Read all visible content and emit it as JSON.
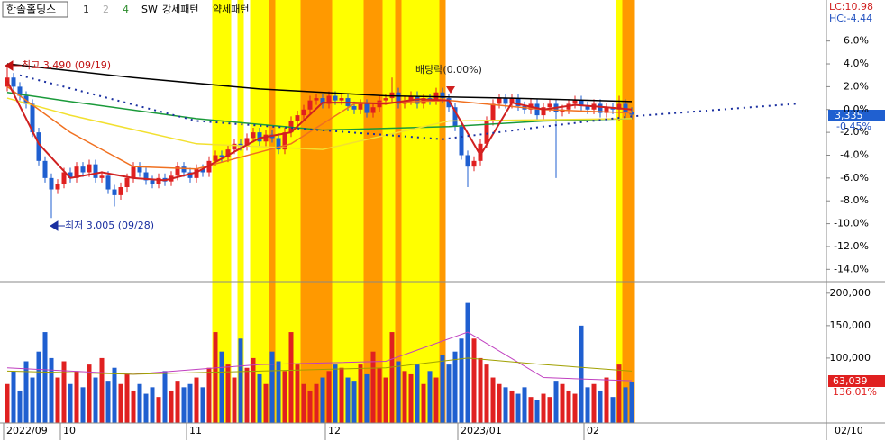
{
  "chart_data": {
    "type": "candlestick",
    "header": {
      "title": "한솔홀딩스",
      "items": [
        "1",
        "2",
        "4"
      ],
      "sw": "SW",
      "strong": "강세패턴",
      "weak": "약세패턴"
    },
    "lc": "LC:10.98",
    "hc": "HC:-4.44",
    "last_price": "3,335",
    "last_change": "-0.45%",
    "last_volume": "63,039",
    "volume_ratio": "136.01%",
    "date_box": "02/10",
    "annotations": {
      "high": "최고 3,490 (09/19)",
      "low": "최저 3,005 (09/28)",
      "ex_dividend": "배당락(0.00%)"
    },
    "up_color": "#e02020",
    "down_color": "#1f5fd0",
    "ylim": [
      -15,
      9.6
    ],
    "yticks": [
      {
        "value": 6,
        "label": "6.0%"
      },
      {
        "value": 4,
        "label": "4.0%"
      },
      {
        "value": 2,
        "label": "2.0%"
      },
      {
        "value": 0,
        "label": "0.0%"
      },
      {
        "value": -2,
        "label": "-2.0%"
      },
      {
        "value": -4,
        "label": "-4.0%"
      },
      {
        "value": -6,
        "label": "-6.0%"
      },
      {
        "value": -8,
        "label": "-8.0%"
      },
      {
        "value": -10,
        "label": "-10.0%"
      },
      {
        "value": -12,
        "label": "-12.0%"
      },
      {
        "value": -14,
        "label": "-14.0%"
      }
    ],
    "volume_ylim": [
      0,
      215000
    ],
    "volume_yticks": [
      {
        "value": 200000,
        "label": "200,000"
      },
      {
        "value": 150000,
        "label": "150,000"
      },
      {
        "value": 100000,
        "label": "100,000"
      }
    ],
    "x_labels": [
      {
        "index": 0,
        "label": "2022/09"
      },
      {
        "index": 9,
        "label": "10"
      },
      {
        "index": 29,
        "label": "11"
      },
      {
        "index": 51,
        "label": "12"
      },
      {
        "index": 72,
        "label": "2023/01"
      },
      {
        "index": 92,
        "label": "02"
      }
    ],
    "bands": [
      {
        "from": 33,
        "to": 35,
        "color": "#ffff00"
      },
      {
        "from": 37,
        "to": 37,
        "color": "#ffff00"
      },
      {
        "from": 39,
        "to": 41,
        "color": "#ffff00"
      },
      {
        "from": 42,
        "to": 42,
        "color": "#ff9900"
      },
      {
        "from": 43,
        "to": 46,
        "color": "#ffff00"
      },
      {
        "from": 47,
        "to": 51,
        "color": "#ff9900"
      },
      {
        "from": 52,
        "to": 56,
        "color": "#ffff00"
      },
      {
        "from": 57,
        "to": 59,
        "color": "#ff9900"
      },
      {
        "from": 60,
        "to": 61,
        "color": "#ffff00"
      },
      {
        "from": 62,
        "to": 62,
        "color": "#ff9900"
      },
      {
        "from": 63,
        "to": 68,
        "color": "#ffff00"
      },
      {
        "from": 69,
        "to": 69,
        "color": "#ff9900"
      },
      {
        "from": 97,
        "to": 97,
        "color": "#ffff00"
      },
      {
        "from": 98,
        "to": 99,
        "color": "#ff9900"
      }
    ],
    "candles": {
      "open": [
        2.0,
        2.8,
        2.0,
        1.2,
        0.5,
        -2.0,
        -4.5,
        -6.0,
        -7.0,
        -6.5,
        -5.5,
        -6.0,
        -5.0,
        -5.5,
        -4.8,
        -6.0,
        -5.8,
        -7.0,
        -7.5,
        -6.8,
        -6.0,
        -5.0,
        -5.5,
        -6.2,
        -6.5,
        -6.0,
        -6.3,
        -5.8,
        -5.0,
        -5.5,
        -6.0,
        -5.2,
        -5.5,
        -4.5,
        -4.0,
        -4.2,
        -3.5,
        -3.0,
        -3.2,
        -2.5,
        -2.0,
        -2.8,
        -2.2,
        -2.5,
        -3.5,
        -2.0,
        -1.0,
        -0.5,
        0.0,
        0.8,
        1.0,
        0.5,
        1.2,
        0.8,
        1.0,
        0.3,
        0.0,
        0.5,
        -0.3,
        0.2,
        0.8,
        1.0,
        1.5,
        0.5,
        0.8,
        1.2,
        0.5,
        1.0,
        0.8,
        1.5,
        1.0,
        0.2,
        -1.5,
        -4.0,
        -5.0,
        -4.5,
        -3.0,
        -1.0,
        0.5,
        1.0,
        0.5,
        1.0,
        0.3,
        0.0,
        0.5,
        -0.5,
        0.2,
        0.5,
        -0.2,
        0.0,
        0.5,
        0.8,
        0.3,
        0.0,
        0.5,
        -0.3,
        0.2,
        0.0,
        0.5,
        -0.2
      ],
      "close": [
        2.8,
        2.0,
        1.2,
        0.5,
        -2.0,
        -4.5,
        -6.0,
        -7.0,
        -6.5,
        -5.5,
        -6.0,
        -5.0,
        -5.5,
        -4.8,
        -6.0,
        -5.8,
        -7.0,
        -7.5,
        -6.8,
        -6.0,
        -5.0,
        -5.5,
        -6.2,
        -6.5,
        -6.0,
        -6.3,
        -5.8,
        -5.0,
        -5.5,
        -6.0,
        -5.2,
        -5.5,
        -4.5,
        -4.0,
        -4.2,
        -3.5,
        -3.0,
        -3.2,
        -2.5,
        -2.0,
        -2.8,
        -2.2,
        -2.5,
        -3.5,
        -2.0,
        -1.0,
        -0.5,
        0.0,
        0.8,
        1.0,
        0.5,
        1.2,
        0.8,
        1.0,
        0.3,
        0.0,
        0.5,
        -0.3,
        0.2,
        0.8,
        1.0,
        1.5,
        0.5,
        0.8,
        1.2,
        0.5,
        1.0,
        0.8,
        1.5,
        1.0,
        0.2,
        -1.5,
        -4.0,
        -5.0,
        -4.5,
        -3.0,
        -1.0,
        0.5,
        1.0,
        0.5,
        1.0,
        0.3,
        0.0,
        0.5,
        -0.5,
        0.2,
        0.5,
        -0.2,
        0.0,
        0.5,
        0.8,
        0.3,
        0.0,
        0.5,
        -0.3,
        0.2,
        0.0,
        0.5,
        -0.2,
        -0.45
      ],
      "high": [
        3.9,
        3.2,
        2.4,
        1.6,
        0.9,
        -1.6,
        -4.1,
        -5.6,
        -6.1,
        -5.1,
        -5.1,
        -4.6,
        -4.6,
        -4.4,
        -4.4,
        -5.4,
        -5.4,
        -6.6,
        -6.4,
        -5.6,
        -4.6,
        -4.6,
        -5.1,
        -5.8,
        -5.6,
        -5.6,
        -5.4,
        -4.6,
        -4.6,
        -5.1,
        -4.8,
        -4.8,
        -4.1,
        -3.6,
        -3.6,
        -3.1,
        -2.6,
        -2.6,
        -2.1,
        -1.6,
        -1.6,
        -1.8,
        -1.8,
        -2.1,
        -1.6,
        -0.6,
        -0.1,
        0.4,
        1.2,
        1.4,
        1.4,
        1.6,
        1.6,
        1.4,
        1.4,
        0.7,
        0.9,
        0.9,
        0.6,
        1.2,
        1.4,
        2.8,
        1.9,
        1.2,
        1.6,
        1.6,
        1.4,
        1.4,
        1.9,
        1.9,
        1.4,
        0.6,
        -1.1,
        -3.6,
        -4.1,
        -2.6,
        -0.6,
        0.9,
        1.4,
        1.4,
        1.4,
        1.4,
        0.7,
        0.9,
        0.9,
        0.6,
        0.9,
        0.9,
        0.4,
        0.9,
        1.2,
        1.2,
        0.7,
        0.9,
        0.9,
        0.6,
        0.6,
        1.2,
        0.9,
        0.2
      ],
      "low": [
        1.6,
        1.6,
        0.8,
        0.1,
        -2.4,
        -4.9,
        -6.4,
        -9.5,
        -7.4,
        -6.9,
        -6.4,
        -6.4,
        -5.9,
        -5.9,
        -6.4,
        -6.4,
        -7.4,
        -8.5,
        -7.9,
        -7.2,
        -6.4,
        -5.9,
        -6.6,
        -6.9,
        -6.9,
        -6.7,
        -6.7,
        -6.2,
        -5.9,
        -6.4,
        -6.4,
        -5.9,
        -5.9,
        -4.9,
        -4.6,
        -4.6,
        -3.9,
        -3.6,
        -3.6,
        -2.9,
        -3.2,
        -3.2,
        -2.9,
        -3.9,
        -3.9,
        -2.4,
        -1.4,
        -0.9,
        -0.4,
        0.4,
        0.1,
        0.1,
        0.4,
        0.4,
        -0.1,
        -0.4,
        -0.4,
        -0.7,
        -0.7,
        -0.2,
        0.4,
        0.6,
        0.1,
        0.1,
        0.4,
        0.1,
        0.1,
        0.4,
        0.4,
        0.6,
        -0.2,
        -1.9,
        -4.4,
        -6.8,
        -5.4,
        -4.9,
        -3.4,
        -1.4,
        0.1,
        0.1,
        0.1,
        -0.1,
        -0.4,
        -0.4,
        -0.9,
        -0.9,
        -0.2,
        -6.0,
        -0.6,
        -0.4,
        0.1,
        -0.1,
        -0.4,
        -0.4,
        -0.7,
        -0.7,
        -0.4,
        -1.0,
        -0.6,
        -0.85
      ]
    },
    "volume": [
      60000,
      80000,
      50000,
      95000,
      70000,
      110000,
      140000,
      100000,
      70000,
      95000,
      60000,
      80000,
      55000,
      90000,
      70000,
      100000,
      65000,
      85000,
      60000,
      75000,
      50000,
      60000,
      45000,
      55000,
      40000,
      80000,
      50000,
      65000,
      55000,
      60000,
      70000,
      55000,
      85000,
      140000,
      110000,
      90000,
      70000,
      130000,
      85000,
      100000,
      75000,
      60000,
      110000,
      95000,
      80000,
      140000,
      90000,
      60000,
      50000,
      60000,
      70000,
      80000,
      90000,
      85000,
      70000,
      65000,
      90000,
      75000,
      110000,
      85000,
      70000,
      140000,
      95000,
      80000,
      75000,
      90000,
      60000,
      80000,
      70000,
      105000,
      90000,
      110000,
      130000,
      185000,
      130000,
      100000,
      90000,
      70000,
      60000,
      55000,
      50000,
      45000,
      55000,
      40000,
      35000,
      45000,
      40000,
      65000,
      60000,
      50000,
      45000,
      150000,
      55000,
      60000,
      50000,
      70000,
      40000,
      90000,
      55000,
      63039
    ],
    "moving_averages": [
      {
        "color": "#000000",
        "width": 1.5,
        "x": [
          0,
          20,
          40,
          60,
          80,
          99
        ],
        "values": [
          4.0,
          2.8,
          1.8,
          1.2,
          1.0,
          0.7
        ]
      },
      {
        "color": "#1a9a3a",
        "width": 1.5,
        "x": [
          0,
          10,
          30,
          50,
          70,
          85,
          99
        ],
        "values": [
          1.5,
          0.7,
          -0.8,
          -1.8,
          -1.5,
          -1.0,
          -0.8
        ]
      },
      {
        "color": "#f2e030",
        "width": 1.5,
        "x": [
          0,
          10,
          30,
          50,
          70,
          99
        ],
        "values": [
          1.0,
          -0.5,
          -3.0,
          -3.5,
          -1.0,
          -0.8
        ]
      },
      {
        "color": "#f07020",
        "width": 1.5,
        "x": [
          0,
          10,
          20,
          30,
          45,
          55,
          70,
          85,
          99
        ],
        "values": [
          2.0,
          -2.0,
          -5.0,
          -5.2,
          -3.0,
          0.5,
          0.8,
          0.0,
          -0.3
        ]
      },
      {
        "color": "#d02020",
        "width": 2,
        "x": [
          0,
          5,
          10,
          15,
          20,
          25,
          30,
          35,
          40,
          45,
          50,
          55,
          60,
          65,
          70,
          75,
          80,
          85,
          90,
          95,
          99
        ],
        "values": [
          2.5,
          -3.0,
          -6.0,
          -5.5,
          -6.0,
          -6.2,
          -5.5,
          -4.0,
          -2.5,
          -2.0,
          0.6,
          0.6,
          0.5,
          0.9,
          0.8,
          -4.0,
          0.6,
          0.0,
          0.4,
          0.2,
          0.0
        ]
      },
      {
        "color": "#1a2fa0",
        "width": 2,
        "dash": "2 5",
        "x": [
          2,
          30,
          69,
          85,
          99,
          125
        ],
        "values": [
          3.0,
          -1.0,
          -2.6,
          -1.5,
          -0.6,
          0.5
        ]
      }
    ],
    "volume_averages": [
      {
        "color": "#c040c0",
        "x": [
          0,
          20,
          40,
          60,
          73,
          85,
          99
        ],
        "values": [
          85000,
          75000,
          90000,
          95000,
          140000,
          70000,
          65000
        ]
      },
      {
        "color": "#a0a000",
        "x": [
          0,
          20,
          40,
          60,
          73,
          85,
          99
        ],
        "values": [
          80000,
          75000,
          80000,
          85000,
          100000,
          90000,
          80000
        ]
      }
    ]
  }
}
